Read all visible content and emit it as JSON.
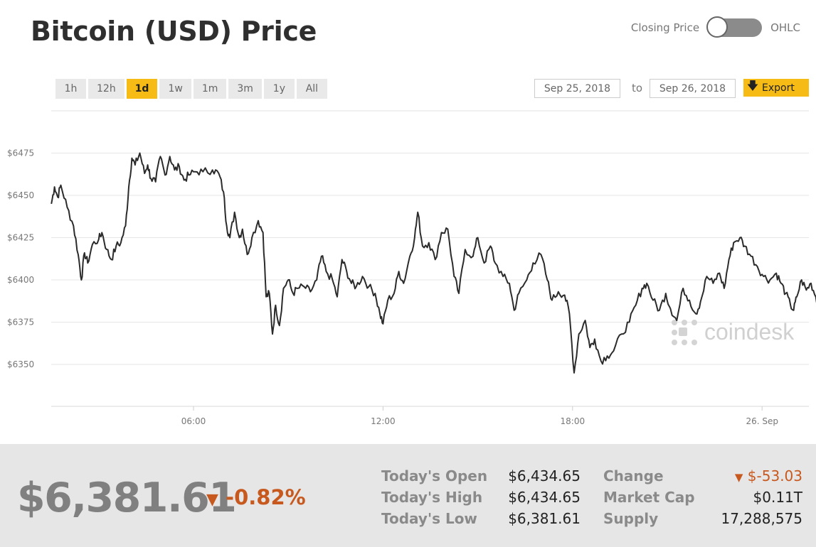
{
  "header": {
    "title": "Bitcoin (USD) Price",
    "toggle_left": "Closing Price",
    "toggle_right": "OHLC"
  },
  "ranges": [
    "1h",
    "12h",
    "1d",
    "1w",
    "1m",
    "3m",
    "1y",
    "All"
  ],
  "active_range": "1d",
  "date_range": {
    "from": "Sep 25, 2018",
    "to_label": "to",
    "to": "Sep 26, 2018"
  },
  "export_label": "Export",
  "watermark": "coindesk",
  "colors": {
    "accent": "#f7bb16",
    "negative": "#c7591f",
    "line": "#2b2b2b"
  },
  "chart_data": {
    "type": "line",
    "x_unit": "hours since Sep 25, 2018 00:00",
    "y_ticks": [
      6350,
      6375,
      6400,
      6425,
      6450,
      6475
    ],
    "y_tick_labels": [
      "$6350",
      "$6375",
      "$6400",
      "$6425",
      "$6450",
      "$6475"
    ],
    "x_ticks": [
      6,
      12,
      18,
      24
    ],
    "x_tick_labels": [
      "06:00",
      "12:00",
      "18:00",
      "26. Sep"
    ],
    "xlim": [
      1.5,
      25.8
    ],
    "ylim": [
      6324,
      6490
    ],
    "grid": true,
    "series": [
      {
        "values": [
          [
            1.5,
            6445
          ],
          [
            1.6,
            6455
          ],
          [
            1.7,
            6449
          ],
          [
            1.8,
            6456
          ],
          [
            2.0,
            6443
          ],
          [
            2.2,
            6432
          ],
          [
            2.35,
            6415
          ],
          [
            2.45,
            6400
          ],
          [
            2.55,
            6416
          ],
          [
            2.65,
            6410
          ],
          [
            2.8,
            6421
          ],
          [
            3.0,
            6424
          ],
          [
            3.1,
            6428
          ],
          [
            3.25,
            6418
          ],
          [
            3.4,
            6412
          ],
          [
            3.55,
            6420
          ],
          [
            3.7,
            6422
          ],
          [
            3.85,
            6432
          ],
          [
            3.95,
            6455
          ],
          [
            4.05,
            6472
          ],
          [
            4.15,
            6468
          ],
          [
            4.3,
            6475
          ],
          [
            4.45,
            6463
          ],
          [
            4.55,
            6468
          ],
          [
            4.65,
            6460
          ],
          [
            4.8,
            6458
          ],
          [
            4.95,
            6473
          ],
          [
            5.1,
            6462
          ],
          [
            5.25,
            6473
          ],
          [
            5.4,
            6465
          ],
          [
            5.55,
            6467
          ],
          [
            5.7,
            6459
          ],
          [
            5.85,
            6462
          ],
          [
            6.05,
            6464
          ],
          [
            6.3,
            6464
          ],
          [
            6.6,
            6465
          ],
          [
            6.8,
            6463
          ],
          [
            6.95,
            6452
          ],
          [
            7.05,
            6432
          ],
          [
            7.15,
            6425
          ],
          [
            7.3,
            6440
          ],
          [
            7.45,
            6425
          ],
          [
            7.55,
            6430
          ],
          [
            7.7,
            6415
          ],
          [
            7.85,
            6425
          ],
          [
            8.05,
            6435
          ],
          [
            8.2,
            6428
          ],
          [
            8.3,
            6390
          ],
          [
            8.4,
            6392
          ],
          [
            8.5,
            6368
          ],
          [
            8.6,
            6385
          ],
          [
            8.72,
            6373
          ],
          [
            8.85,
            6395
          ],
          [
            9.0,
            6400
          ],
          [
            9.15,
            6392
          ],
          [
            9.3,
            6395
          ],
          [
            9.5,
            6396
          ],
          [
            9.7,
            6393
          ],
          [
            9.9,
            6400
          ],
          [
            10.05,
            6414
          ],
          [
            10.2,
            6405
          ],
          [
            10.4,
            6400
          ],
          [
            10.55,
            6390
          ],
          [
            10.7,
            6412
          ],
          [
            10.85,
            6405
          ],
          [
            11.0,
            6398
          ],
          [
            11.15,
            6396
          ],
          [
            11.35,
            6402
          ],
          [
            11.55,
            6396
          ],
          [
            11.75,
            6392
          ],
          [
            11.9,
            6380
          ],
          [
            12.0,
            6374
          ],
          [
            12.15,
            6388
          ],
          [
            12.35,
            6392
          ],
          [
            12.5,
            6405
          ],
          [
            12.65,
            6398
          ],
          [
            12.85,
            6414
          ],
          [
            13.0,
            6425
          ],
          [
            13.1,
            6440
          ],
          [
            13.25,
            6420
          ],
          [
            13.45,
            6422
          ],
          [
            13.65,
            6412
          ],
          [
            13.85,
            6428
          ],
          [
            14.05,
            6430
          ],
          [
            14.25,
            6402
          ],
          [
            14.4,
            6392
          ],
          [
            14.6,
            6418
          ],
          [
            14.85,
            6414
          ],
          [
            15.0,
            6425
          ],
          [
            15.2,
            6410
          ],
          [
            15.4,
            6420
          ],
          [
            15.55,
            6410
          ],
          [
            15.8,
            6402
          ],
          [
            16.0,
            6398
          ],
          [
            16.15,
            6382
          ],
          [
            16.3,
            6392
          ],
          [
            16.55,
            6400
          ],
          [
            16.75,
            6410
          ],
          [
            17.0,
            6415
          ],
          [
            17.2,
            6400
          ],
          [
            17.35,
            6388
          ],
          [
            17.55,
            6393
          ],
          [
            17.75,
            6391
          ],
          [
            17.9,
            6380
          ],
          [
            18.05,
            6345
          ],
          [
            18.2,
            6368
          ],
          [
            18.4,
            6376
          ],
          [
            18.55,
            6360
          ],
          [
            18.7,
            6365
          ],
          [
            18.9,
            6352
          ],
          [
            19.1,
            6355
          ],
          [
            19.3,
            6358
          ],
          [
            19.55,
            6368
          ],
          [
            19.8,
            6375
          ],
          [
            20.0,
            6385
          ],
          [
            20.2,
            6395
          ],
          [
            20.35,
            6398
          ],
          [
            20.55,
            6388
          ],
          [
            20.75,
            6382
          ],
          [
            20.95,
            6392
          ],
          [
            21.1,
            6383
          ],
          [
            21.3,
            6376
          ],
          [
            21.5,
            6395
          ],
          [
            21.7,
            6388
          ],
          [
            21.9,
            6380
          ],
          [
            22.05,
            6387
          ],
          [
            22.25,
            6402
          ],
          [
            22.45,
            6398
          ],
          [
            22.65,
            6404
          ],
          [
            22.8,
            6395
          ],
          [
            22.95,
            6412
          ],
          [
            23.1,
            6422
          ],
          [
            23.3,
            6425
          ],
          [
            23.45,
            6420
          ],
          [
            23.65,
            6414
          ],
          [
            23.85,
            6408
          ],
          [
            24.05,
            6402
          ],
          [
            24.25,
            6400
          ],
          [
            24.45,
            6404
          ],
          [
            24.6,
            6398
          ],
          [
            24.75,
            6392
          ],
          [
            24.9,
            6385
          ],
          [
            25.0,
            6382
          ],
          [
            25.1,
            6390
          ],
          [
            25.25,
            6400
          ],
          [
            25.4,
            6394
          ],
          [
            25.55,
            6398
          ],
          [
            25.7,
            6390
          ],
          [
            25.8,
            6385
          ]
        ]
      }
    ]
  },
  "summary": {
    "price": "$6,381.61",
    "percent_change": "-0.82%",
    "stats_left": [
      {
        "label": "Today's Open",
        "value": "$6,434.65"
      },
      {
        "label": "Today's High",
        "value": "$6,434.65"
      },
      {
        "label": "Today's Low",
        "value": "$6,381.61"
      }
    ],
    "stats_right": [
      {
        "label": "Change",
        "value": "$-53.03",
        "negative": true
      },
      {
        "label": "Market Cap",
        "value": "$0.11T"
      },
      {
        "label": "Supply",
        "value": "17,288,575"
      }
    ]
  }
}
